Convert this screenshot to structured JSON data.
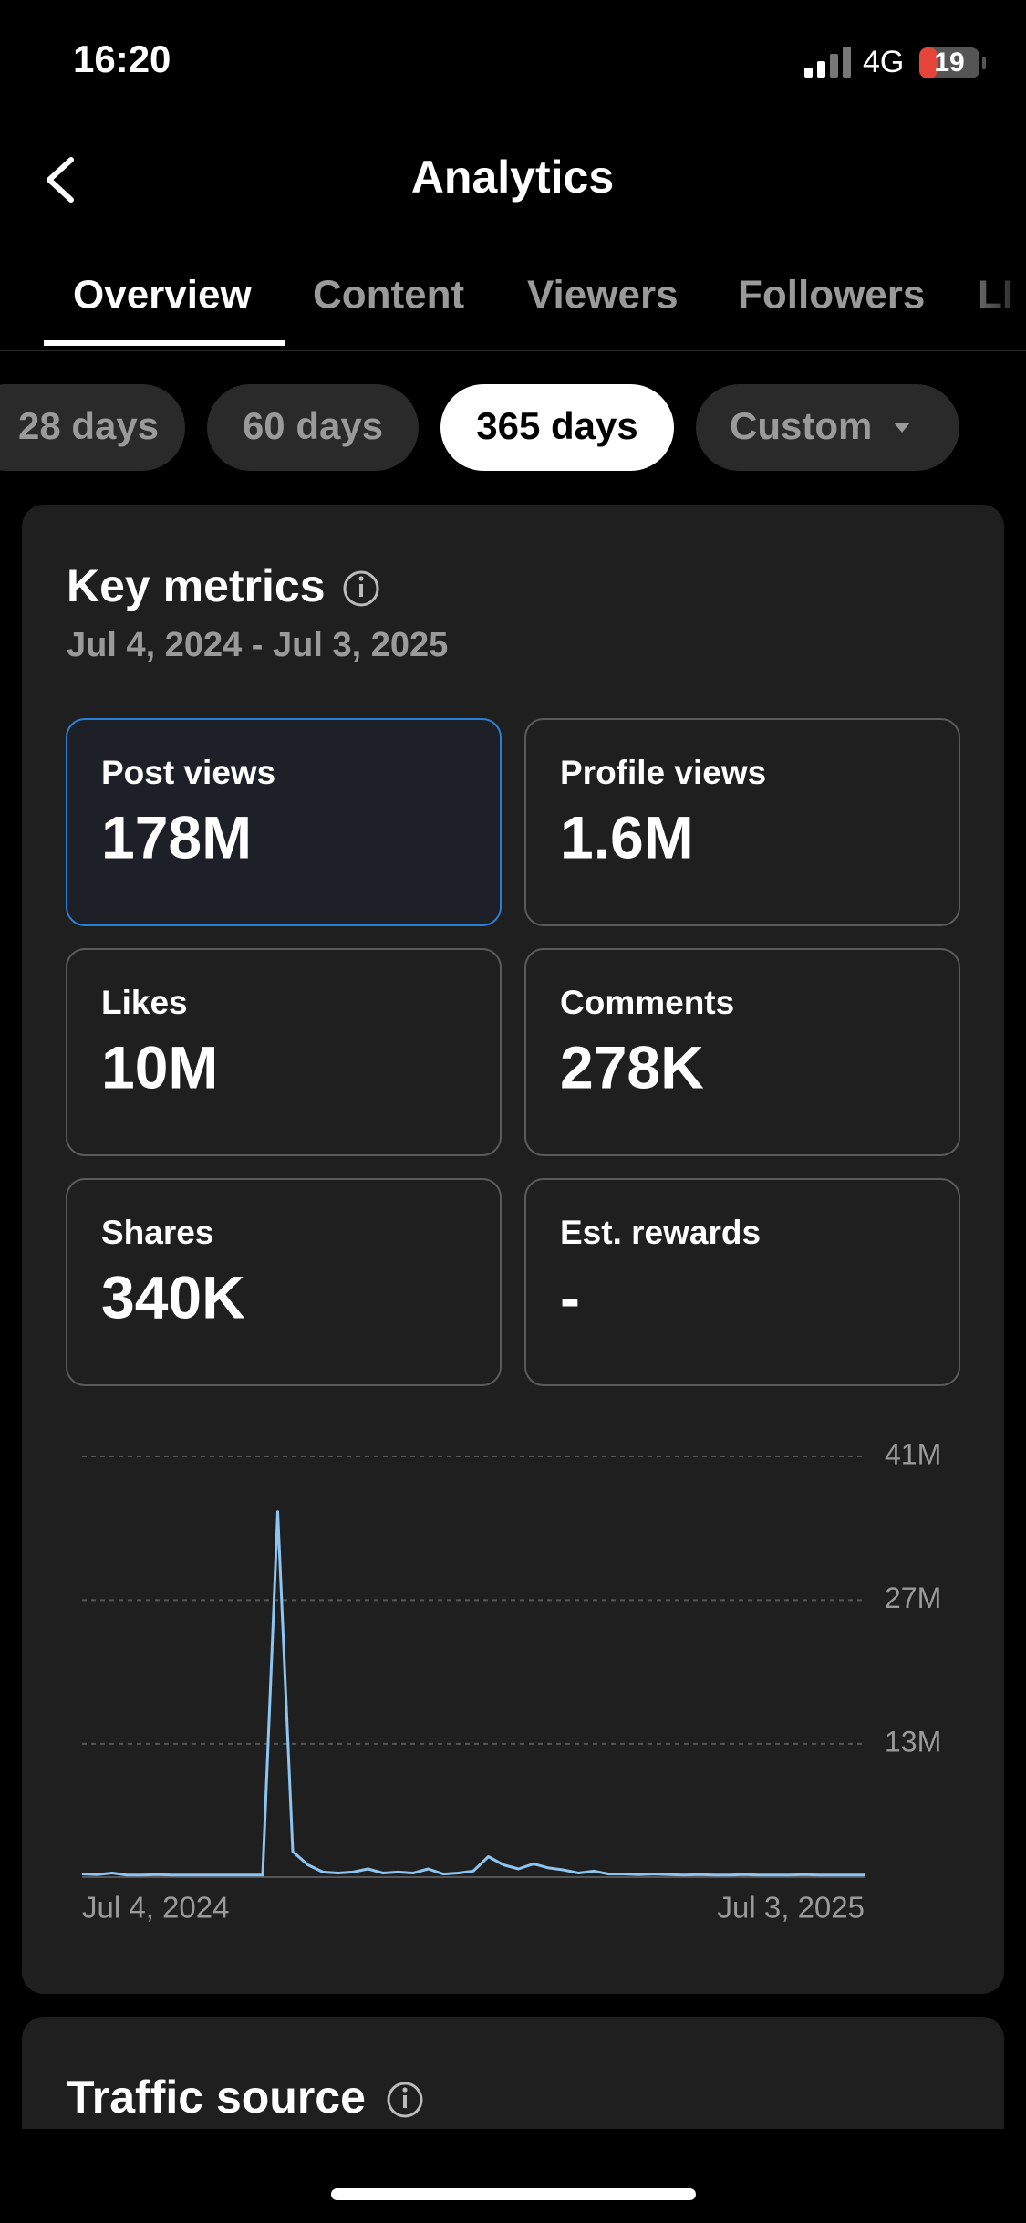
{
  "status_bar": {
    "time": "16:20",
    "network": "4G",
    "battery": "19"
  },
  "header": {
    "title": "Analytics"
  },
  "tabs": [
    "Overview",
    "Content",
    "Viewers",
    "Followers",
    "LI"
  ],
  "pills": [
    "28 days",
    "60 days",
    "365 days",
    "Custom"
  ],
  "key_metrics": {
    "title": "Key metrics",
    "date_range": "Jul 4, 2024 - Jul 3, 2025",
    "metrics": [
      {
        "label": "Post views",
        "value": "178M"
      },
      {
        "label": "Profile views",
        "value": "1.6M"
      },
      {
        "label": "Likes",
        "value": "10M"
      },
      {
        "label": "Comments",
        "value": "278K"
      },
      {
        "label": "Shares",
        "value": "340K"
      },
      {
        "label": "Est. rewards",
        "value": "-"
      }
    ]
  },
  "chart_data": {
    "type": "line",
    "color": "#8ec5f0",
    "grid": true,
    "categories": [
      "Jul 4, 2024",
      null,
      null,
      null,
      null,
      null,
      null,
      null,
      null,
      null,
      null,
      null,
      null,
      null,
      null,
      null,
      null,
      null,
      null,
      null,
      null,
      null,
      null,
      null,
      null,
      null,
      null,
      null,
      null,
      null,
      null,
      null,
      null,
      null,
      null,
      null,
      null,
      null,
      null,
      null,
      null,
      null,
      null,
      null,
      null,
      null,
      null,
      null,
      null,
      null,
      null,
      null,
      "Jul 3, 2025"
    ],
    "values": [
      300000,
      250000,
      400000,
      200000,
      200000,
      250000,
      200000,
      200000,
      200000,
      200000,
      200000,
      200000,
      200000,
      35600000,
      2500000,
      1200000,
      500000,
      400000,
      500000,
      800000,
      400000,
      500000,
      400000,
      800000,
      300000,
      400000,
      600000,
      2000000,
      1200000,
      800000,
      1300000,
      900000,
      700000,
      400000,
      600000,
      300000,
      300000,
      250000,
      300000,
      250000,
      200000,
      250000,
      200000,
      200000,
      250000,
      200000,
      200000,
      200000,
      250000,
      200000,
      200000,
      200000,
      200000
    ],
    "ylim": [
      0,
      41000000
    ],
    "yticks": [
      {
        "value": 13000000,
        "label": "13M"
      },
      {
        "value": 27000000,
        "label": "27M"
      },
      {
        "value": 41000000,
        "label": "41M"
      }
    ]
  },
  "traffic_source": {
    "title": "Traffic source"
  }
}
